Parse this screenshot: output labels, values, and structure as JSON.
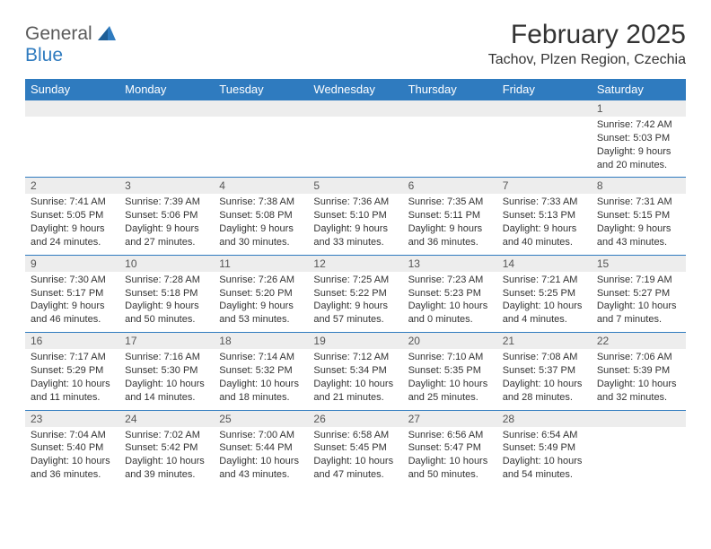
{
  "logo": {
    "word1": "General",
    "word2": "Blue"
  },
  "title": "February 2025",
  "location": "Tachov, Plzen Region, Czechia",
  "colors": {
    "header_bg": "#2f7bbf",
    "header_text": "#ffffff",
    "daynum_bg": "#ededed",
    "border": "#2f7bbf",
    "text": "#333333"
  },
  "weekdays": [
    "Sunday",
    "Monday",
    "Tuesday",
    "Wednesday",
    "Thursday",
    "Friday",
    "Saturday"
  ],
  "weeks": [
    [
      {
        "n": "",
        "sunrise": "",
        "sunset": "",
        "daylight": ""
      },
      {
        "n": "",
        "sunrise": "",
        "sunset": "",
        "daylight": ""
      },
      {
        "n": "",
        "sunrise": "",
        "sunset": "",
        "daylight": ""
      },
      {
        "n": "",
        "sunrise": "",
        "sunset": "",
        "daylight": ""
      },
      {
        "n": "",
        "sunrise": "",
        "sunset": "",
        "daylight": ""
      },
      {
        "n": "",
        "sunrise": "",
        "sunset": "",
        "daylight": ""
      },
      {
        "n": "1",
        "sunrise": "Sunrise: 7:42 AM",
        "sunset": "Sunset: 5:03 PM",
        "daylight": "Daylight: 9 hours and 20 minutes."
      }
    ],
    [
      {
        "n": "2",
        "sunrise": "Sunrise: 7:41 AM",
        "sunset": "Sunset: 5:05 PM",
        "daylight": "Daylight: 9 hours and 24 minutes."
      },
      {
        "n": "3",
        "sunrise": "Sunrise: 7:39 AM",
        "sunset": "Sunset: 5:06 PM",
        "daylight": "Daylight: 9 hours and 27 minutes."
      },
      {
        "n": "4",
        "sunrise": "Sunrise: 7:38 AM",
        "sunset": "Sunset: 5:08 PM",
        "daylight": "Daylight: 9 hours and 30 minutes."
      },
      {
        "n": "5",
        "sunrise": "Sunrise: 7:36 AM",
        "sunset": "Sunset: 5:10 PM",
        "daylight": "Daylight: 9 hours and 33 minutes."
      },
      {
        "n": "6",
        "sunrise": "Sunrise: 7:35 AM",
        "sunset": "Sunset: 5:11 PM",
        "daylight": "Daylight: 9 hours and 36 minutes."
      },
      {
        "n": "7",
        "sunrise": "Sunrise: 7:33 AM",
        "sunset": "Sunset: 5:13 PM",
        "daylight": "Daylight: 9 hours and 40 minutes."
      },
      {
        "n": "8",
        "sunrise": "Sunrise: 7:31 AM",
        "sunset": "Sunset: 5:15 PM",
        "daylight": "Daylight: 9 hours and 43 minutes."
      }
    ],
    [
      {
        "n": "9",
        "sunrise": "Sunrise: 7:30 AM",
        "sunset": "Sunset: 5:17 PM",
        "daylight": "Daylight: 9 hours and 46 minutes."
      },
      {
        "n": "10",
        "sunrise": "Sunrise: 7:28 AM",
        "sunset": "Sunset: 5:18 PM",
        "daylight": "Daylight: 9 hours and 50 minutes."
      },
      {
        "n": "11",
        "sunrise": "Sunrise: 7:26 AM",
        "sunset": "Sunset: 5:20 PM",
        "daylight": "Daylight: 9 hours and 53 minutes."
      },
      {
        "n": "12",
        "sunrise": "Sunrise: 7:25 AM",
        "sunset": "Sunset: 5:22 PM",
        "daylight": "Daylight: 9 hours and 57 minutes."
      },
      {
        "n": "13",
        "sunrise": "Sunrise: 7:23 AM",
        "sunset": "Sunset: 5:23 PM",
        "daylight": "Daylight: 10 hours and 0 minutes."
      },
      {
        "n": "14",
        "sunrise": "Sunrise: 7:21 AM",
        "sunset": "Sunset: 5:25 PM",
        "daylight": "Daylight: 10 hours and 4 minutes."
      },
      {
        "n": "15",
        "sunrise": "Sunrise: 7:19 AM",
        "sunset": "Sunset: 5:27 PM",
        "daylight": "Daylight: 10 hours and 7 minutes."
      }
    ],
    [
      {
        "n": "16",
        "sunrise": "Sunrise: 7:17 AM",
        "sunset": "Sunset: 5:29 PM",
        "daylight": "Daylight: 10 hours and 11 minutes."
      },
      {
        "n": "17",
        "sunrise": "Sunrise: 7:16 AM",
        "sunset": "Sunset: 5:30 PM",
        "daylight": "Daylight: 10 hours and 14 minutes."
      },
      {
        "n": "18",
        "sunrise": "Sunrise: 7:14 AM",
        "sunset": "Sunset: 5:32 PM",
        "daylight": "Daylight: 10 hours and 18 minutes."
      },
      {
        "n": "19",
        "sunrise": "Sunrise: 7:12 AM",
        "sunset": "Sunset: 5:34 PM",
        "daylight": "Daylight: 10 hours and 21 minutes."
      },
      {
        "n": "20",
        "sunrise": "Sunrise: 7:10 AM",
        "sunset": "Sunset: 5:35 PM",
        "daylight": "Daylight: 10 hours and 25 minutes."
      },
      {
        "n": "21",
        "sunrise": "Sunrise: 7:08 AM",
        "sunset": "Sunset: 5:37 PM",
        "daylight": "Daylight: 10 hours and 28 minutes."
      },
      {
        "n": "22",
        "sunrise": "Sunrise: 7:06 AM",
        "sunset": "Sunset: 5:39 PM",
        "daylight": "Daylight: 10 hours and 32 minutes."
      }
    ],
    [
      {
        "n": "23",
        "sunrise": "Sunrise: 7:04 AM",
        "sunset": "Sunset: 5:40 PM",
        "daylight": "Daylight: 10 hours and 36 minutes."
      },
      {
        "n": "24",
        "sunrise": "Sunrise: 7:02 AM",
        "sunset": "Sunset: 5:42 PM",
        "daylight": "Daylight: 10 hours and 39 minutes."
      },
      {
        "n": "25",
        "sunrise": "Sunrise: 7:00 AM",
        "sunset": "Sunset: 5:44 PM",
        "daylight": "Daylight: 10 hours and 43 minutes."
      },
      {
        "n": "26",
        "sunrise": "Sunrise: 6:58 AM",
        "sunset": "Sunset: 5:45 PM",
        "daylight": "Daylight: 10 hours and 47 minutes."
      },
      {
        "n": "27",
        "sunrise": "Sunrise: 6:56 AM",
        "sunset": "Sunset: 5:47 PM",
        "daylight": "Daylight: 10 hours and 50 minutes."
      },
      {
        "n": "28",
        "sunrise": "Sunrise: 6:54 AM",
        "sunset": "Sunset: 5:49 PM",
        "daylight": "Daylight: 10 hours and 54 minutes."
      },
      {
        "n": "",
        "sunrise": "",
        "sunset": "",
        "daylight": ""
      }
    ]
  ]
}
